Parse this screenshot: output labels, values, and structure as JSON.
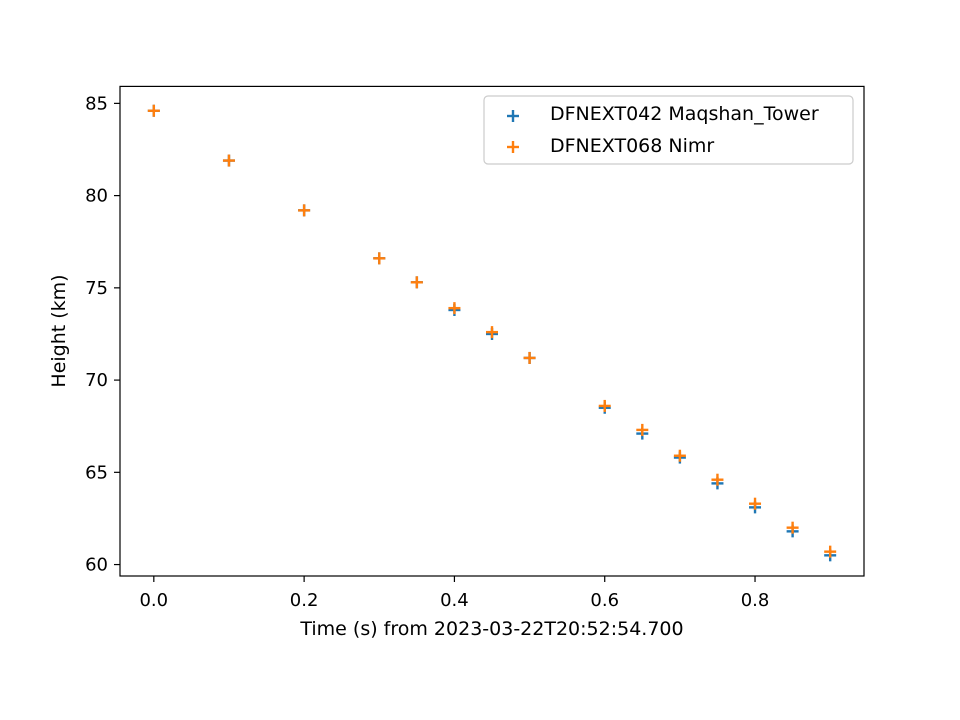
{
  "chart_data": {
    "type": "scatter",
    "title": "",
    "xlabel": "Time (s) from 2023-03-22T20:52:54.700",
    "ylabel": "Height (km)",
    "xlim": [
      -0.045,
      0.945
    ],
    "ylim": [
      59.38,
      85.92
    ],
    "xticks": [
      0.0,
      0.2,
      0.4,
      0.6,
      0.8
    ],
    "xtick_labels": [
      "0.0",
      "0.2",
      "0.4",
      "0.6",
      "0.8"
    ],
    "yticks": [
      60,
      65,
      70,
      75,
      80,
      85
    ],
    "ytick_labels": [
      "60",
      "65",
      "70",
      "75",
      "80",
      "85"
    ],
    "grid": false,
    "legend_position": "top-right",
    "marker": "+",
    "series": [
      {
        "name": "DFNEXT042 Maqshan_Tower",
        "color": "#1f77b4",
        "x": [
          0.0,
          0.1,
          0.2,
          0.3,
          0.35,
          0.4,
          0.45,
          0.5,
          0.6,
          0.65,
          0.7,
          0.75,
          0.8,
          0.85,
          0.9
        ],
        "y": [
          84.6,
          81.9,
          79.2,
          76.6,
          75.3,
          73.8,
          72.5,
          71.2,
          68.5,
          67.1,
          65.8,
          64.4,
          63.1,
          61.8,
          60.5
        ]
      },
      {
        "name": "DFNEXT068 Nimr",
        "color": "#ff7f0e",
        "x": [
          0.0,
          0.1,
          0.2,
          0.3,
          0.35,
          0.4,
          0.45,
          0.5,
          0.6,
          0.65,
          0.7,
          0.75,
          0.8,
          0.85,
          0.9
        ],
        "y": [
          84.6,
          81.9,
          79.2,
          76.6,
          75.3,
          73.9,
          72.6,
          71.2,
          68.6,
          67.3,
          65.9,
          64.6,
          63.3,
          62.0,
          60.7
        ]
      }
    ]
  }
}
